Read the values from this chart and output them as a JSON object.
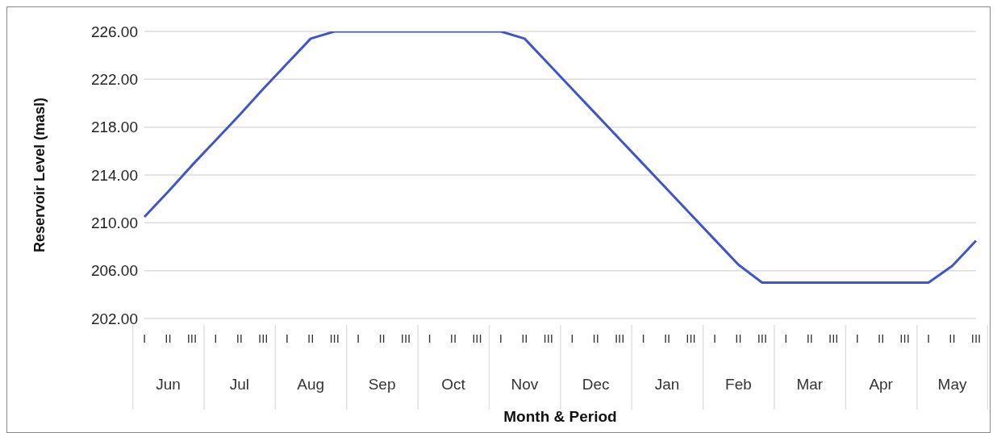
{
  "chart_data": {
    "type": "line",
    "xlabel": "Month & Period",
    "ylabel": "Reservoir Level (masl)",
    "categories": [
      "I",
      "II",
      "III",
      "I",
      "II",
      "III",
      "I",
      "II",
      "III",
      "I",
      "II",
      "III",
      "I",
      "II",
      "III",
      "I",
      "II",
      "III",
      "I",
      "II",
      "III",
      "I",
      "II",
      "III",
      "I",
      "II",
      "III",
      "I",
      "II",
      "III",
      "I",
      "II",
      "III",
      "I",
      "II",
      "III"
    ],
    "annotations": [
      "Jun",
      "Jul",
      "Aug",
      "Sep",
      "Oct",
      "Nov",
      "Dec",
      "Jan",
      "Feb",
      "Mar",
      "Apr",
      "May"
    ],
    "series": [
      {
        "color": "#4056c8",
        "values": [
          210.5,
          212.6,
          214.8,
          216.9,
          219.0,
          221.2,
          223.3,
          225.4,
          226,
          226,
          226,
          226,
          226,
          226,
          226,
          226,
          225.4,
          223.3,
          221.2,
          219.1,
          217.0,
          214.9,
          212.8,
          210.7,
          208.6,
          206.5,
          205,
          205,
          205,
          205,
          205,
          205,
          205,
          205,
          206.4,
          208.5
        ]
      }
    ],
    "ylim": [
      202,
      226
    ],
    "yticks": [
      {
        "value": 202,
        "label": "202.00"
      },
      {
        "value": 206,
        "label": "206.00"
      },
      {
        "value": 210,
        "label": "210.00"
      },
      {
        "value": 214,
        "label": "214.00"
      },
      {
        "value": 218,
        "label": "218.00"
      },
      {
        "value": 222,
        "label": "222.00"
      },
      {
        "value": 226,
        "label": "226.00"
      }
    ],
    "grid": "y",
    "legend": false,
    "marker": "none",
    "line_style": "solid"
  }
}
